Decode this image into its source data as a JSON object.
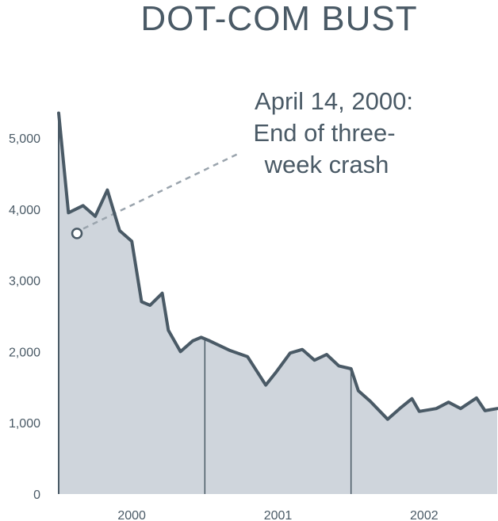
{
  "chart_data": {
    "type": "area",
    "title": "DOT-COM BUST",
    "xlabel": "",
    "ylabel": "",
    "ylim": [
      0,
      5500
    ],
    "y_ticks": [
      "0",
      "1,000",
      "2,000",
      "3,000",
      "4,000",
      "5,000"
    ],
    "y_tick_values": [
      0,
      1000,
      2000,
      3000,
      4000,
      5000
    ],
    "x_ticks": [
      "2000",
      "2001",
      "2002"
    ],
    "year_divider_months": [
      12,
      24
    ],
    "series": [
      {
        "name": "",
        "x_months": [
          0,
          0.8,
          2.0,
          3.0,
          4.0,
          5.0,
          6.0,
          6.8,
          7.5,
          8.5,
          9.0,
          10.0,
          11.0,
          11.7,
          12.4,
          14.0,
          15.5,
          17.0,
          17.8,
          19.0,
          20.0,
          21.0,
          22.0,
          23.0,
          24.0,
          24.6,
          25.6,
          27.0,
          28.0,
          29.0,
          29.6,
          31.0,
          32.0,
          33.0,
          34.3,
          35.0,
          36.0
        ],
        "values": [
          5350,
          3950,
          4050,
          3900,
          4270,
          3700,
          3550,
          2700,
          2650,
          2820,
          2300,
          2000,
          2150,
          2200,
          2150,
          2020,
          1930,
          1530,
          1700,
          1980,
          2030,
          1880,
          1960,
          1800,
          1760,
          1450,
          1300,
          1050,
          1200,
          1340,
          1160,
          1200,
          1290,
          1200,
          1350,
          1170,
          1200
        ],
        "color": "#4a5a66",
        "fill": "#cfd5dc"
      }
    ],
    "annotations": [
      {
        "lines": [
          "April 14, 2000:",
          "End of three-",
          "week crash"
        ],
        "point": {
          "x_month": 1.5,
          "y": 3660
        }
      }
    ]
  }
}
